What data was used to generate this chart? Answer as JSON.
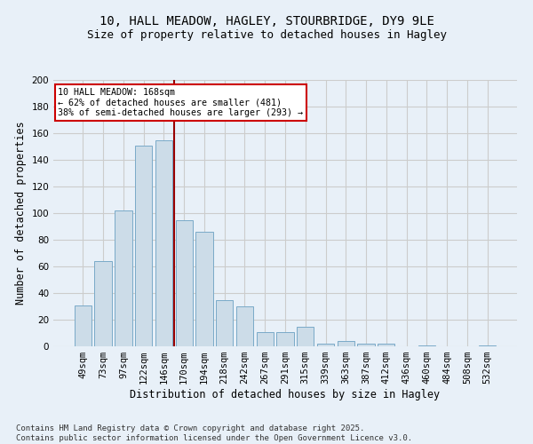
{
  "title_line1": "10, HALL MEADOW, HAGLEY, STOURBRIDGE, DY9 9LE",
  "title_line2": "Size of property relative to detached houses in Hagley",
  "xlabel": "Distribution of detached houses by size in Hagley",
  "ylabel": "Number of detached properties",
  "categories": [
    "49sqm",
    "73sqm",
    "97sqm",
    "122sqm",
    "146sqm",
    "170sqm",
    "194sqm",
    "218sqm",
    "242sqm",
    "267sqm",
    "291sqm",
    "315sqm",
    "339sqm",
    "363sqm",
    "387sqm",
    "412sqm",
    "436sqm",
    "460sqm",
    "484sqm",
    "508sqm",
    "532sqm"
  ],
  "values": [
    31,
    64,
    102,
    151,
    155,
    95,
    86,
    35,
    30,
    11,
    11,
    15,
    2,
    4,
    2,
    2,
    0,
    1,
    0,
    0,
    1
  ],
  "bar_color": "#ccdce8",
  "bar_edge_color": "#7aaac8",
  "highlight_line_color": "#990000",
  "annotation_text": "10 HALL MEADOW: 168sqm\n← 62% of detached houses are smaller (481)\n38% of semi-detached houses are larger (293) →",
  "annotation_box_color": "#ffffff",
  "annotation_box_edge": "#cc0000",
  "grid_color": "#cccccc",
  "background_color": "#e8f0f8",
  "footer_text": "Contains HM Land Registry data © Crown copyright and database right 2025.\nContains public sector information licensed under the Open Government Licence v3.0.",
  "ylim": [
    0,
    200
  ],
  "yticks": [
    0,
    20,
    40,
    60,
    80,
    100,
    120,
    140,
    160,
    180,
    200
  ],
  "title_fontsize": 10,
  "subtitle_fontsize": 9,
  "axis_label_fontsize": 8.5,
  "tick_fontsize": 7.5,
  "footer_fontsize": 6.5
}
